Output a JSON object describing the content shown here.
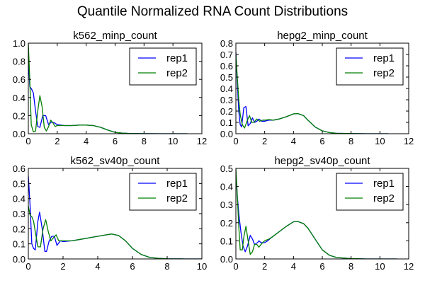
{
  "chart_data": {
    "title": "Quantile Normalized RNA Count Distributions",
    "type": "line",
    "colors": {
      "rep1": "#0000ff",
      "rep2": "#008000"
    },
    "subplots": [
      {
        "title": "k562_minp_count",
        "type": "line",
        "xlim": [
          0,
          12
        ],
        "ylim": [
          0,
          1.0
        ],
        "xticks": [
          0,
          2,
          4,
          6,
          8,
          10,
          12
        ],
        "yticks": [
          0.0,
          0.2,
          0.4,
          0.6,
          0.8,
          1.0
        ],
        "xtick_labels": [
          "0",
          "2",
          "4",
          "6",
          "8",
          "10",
          "12"
        ],
        "ytick_labels": [
          "0.0",
          "0.2",
          "0.4",
          "0.6",
          "0.8",
          "1.0"
        ],
        "legend": "top-right",
        "series": [
          {
            "name": "rep1",
            "x": [
              0,
              0.1,
              0.2,
              0.35,
              0.5,
              0.65,
              0.8,
              1.0,
              1.2,
              1.4,
              1.6,
              1.8,
              2.0,
              2.5,
              3,
              3.5,
              4,
              4.5,
              5,
              5.5,
              6,
              6.5,
              7,
              8,
              9,
              10,
              11
            ],
            "y": [
              0.85,
              0.52,
              0.5,
              0.45,
              0.25,
              0.08,
              0.07,
              0.2,
              0.2,
              0.1,
              0.13,
              0.12,
              0.1,
              0.09,
              0.09,
              0.095,
              0.095,
              0.09,
              0.07,
              0.04,
              0.015,
              0.006,
              0.003,
              0.001,
              0.0,
              0.0,
              0.0
            ]
          },
          {
            "name": "rep2",
            "x": [
              0,
              0.1,
              0.2,
              0.35,
              0.5,
              0.65,
              0.8,
              0.95,
              1.1,
              1.25,
              1.4,
              1.55,
              1.7,
              1.85,
              2.0,
              2.5,
              3,
              3.5,
              4,
              4.5,
              5,
              5.5,
              6,
              6.5,
              7,
              8,
              9,
              10,
              11
            ],
            "y": [
              1.0,
              0.6,
              0.1,
              0.02,
              0.03,
              0.25,
              0.42,
              0.3,
              0.07,
              0.03,
              0.08,
              0.15,
              0.12,
              0.08,
              0.09,
              0.09,
              0.09,
              0.095,
              0.095,
              0.09,
              0.07,
              0.04,
              0.015,
              0.006,
              0.003,
              0.001,
              0.0,
              0.0,
              0.0
            ]
          }
        ]
      },
      {
        "title": "hepg2_minp_count",
        "type": "line",
        "xlim": [
          0,
          12
        ],
        "ylim": [
          0,
          0.8
        ],
        "xticks": [
          0,
          2,
          4,
          6,
          8,
          10,
          12
        ],
        "yticks": [
          0.0,
          0.1,
          0.2,
          0.3,
          0.4,
          0.5,
          0.6,
          0.7,
          0.8
        ],
        "xtick_labels": [
          "0",
          "2",
          "4",
          "6",
          "8",
          "10",
          "12"
        ],
        "ytick_labels": [
          "0.0",
          "0.1",
          "0.2",
          "0.3",
          "0.4",
          "0.5",
          "0.6",
          "0.7",
          "0.8"
        ],
        "legend": "top-right",
        "series": [
          {
            "name": "rep1",
            "x": [
              0,
              0.1,
              0.2,
              0.3,
              0.4,
              0.55,
              0.7,
              0.85,
              1.0,
              1.15,
              1.3,
              1.45,
              1.6,
              1.8,
              2.0,
              2.3,
              2.6,
              3,
              3.5,
              4,
              4.3,
              4.7,
              5,
              5.5,
              6,
              6.5,
              7,
              8,
              9,
              10,
              10.6
            ],
            "y": [
              0.72,
              0.45,
              0.2,
              0.08,
              0.06,
              0.23,
              0.24,
              0.07,
              0.09,
              0.14,
              0.1,
              0.11,
              0.13,
              0.11,
              0.11,
              0.12,
              0.12,
              0.13,
              0.15,
              0.175,
              0.178,
              0.16,
              0.12,
              0.06,
              0.025,
              0.01,
              0.004,
              0.001,
              0.0,
              0.0,
              0.0
            ]
          },
          {
            "name": "rep2",
            "x": [
              0,
              0.1,
              0.2,
              0.3,
              0.45,
              0.6,
              0.8,
              0.95,
              1.1,
              1.25,
              1.45,
              1.65,
              1.85,
              2.0,
              2.3,
              2.6,
              3,
              3.5,
              4,
              4.3,
              4.7,
              5,
              5.5,
              6,
              6.5,
              7,
              8,
              9,
              10,
              10.6
            ],
            "y": [
              0.7,
              0.5,
              0.3,
              0.17,
              0.08,
              0.05,
              0.12,
              0.16,
              0.1,
              0.1,
              0.13,
              0.11,
              0.12,
              0.12,
              0.125,
              0.12,
              0.13,
              0.15,
              0.175,
              0.178,
              0.16,
              0.12,
              0.06,
              0.025,
              0.01,
              0.004,
              0.001,
              0.0,
              0.0,
              0.0
            ]
          }
        ]
      },
      {
        "title": "k562_sv40p_count",
        "type": "line",
        "xlim": [
          0,
          10
        ],
        "ylim": [
          0,
          0.6
        ],
        "xticks": [
          0,
          2,
          4,
          6,
          8,
          10
        ],
        "yticks": [
          0.0,
          0.1,
          0.2,
          0.3,
          0.4,
          0.5,
          0.6
        ],
        "xtick_labels": [
          "0",
          "2",
          "4",
          "6",
          "8",
          "10"
        ],
        "ytick_labels": [
          "0.0",
          "0.1",
          "0.2",
          "0.3",
          "0.4",
          "0.5",
          "0.6"
        ],
        "legend": "top-right",
        "series": [
          {
            "name": "rep1",
            "x": [
              0,
              0.1,
              0.2,
              0.3,
              0.4,
              0.55,
              0.65,
              0.8,
              0.95,
              1.05,
              1.2,
              1.35,
              1.5,
              1.65,
              1.85,
              2.0,
              2.5,
              3,
              3.5,
              4,
              4.5,
              4.8,
              5.2,
              5.6,
              6,
              6.5,
              7,
              7.5,
              8,
              9,
              10
            ],
            "y": [
              0.55,
              0.35,
              0.1,
              0.07,
              0.06,
              0.25,
              0.31,
              0.2,
              0.05,
              0.05,
              0.12,
              0.15,
              0.15,
              0.09,
              0.12,
              0.115,
              0.12,
              0.13,
              0.14,
              0.15,
              0.16,
              0.165,
              0.155,
              0.12,
              0.07,
              0.03,
              0.01,
              0.004,
              0.001,
              0.0,
              0.0
            ]
          },
          {
            "name": "rep2",
            "x": [
              0,
              0.1,
              0.2,
              0.3,
              0.4,
              0.55,
              0.7,
              0.85,
              1.0,
              1.15,
              1.3,
              1.45,
              1.6,
              1.75,
              1.9,
              2.0,
              2.5,
              3,
              3.5,
              4,
              4.5,
              4.8,
              5.2,
              5.6,
              6,
              6.5,
              7,
              7.5,
              8,
              9,
              10
            ],
            "y": [
              0.35,
              0.29,
              0.28,
              0.25,
              0.18,
              0.08,
              0.08,
              0.2,
              0.26,
              0.18,
              0.12,
              0.14,
              0.16,
              0.12,
              0.12,
              0.12,
              0.12,
              0.13,
              0.14,
              0.15,
              0.16,
              0.165,
              0.155,
              0.12,
              0.07,
              0.03,
              0.01,
              0.004,
              0.001,
              0.0,
              0.0
            ]
          }
        ]
      },
      {
        "title": "hepg2_sv40p_count",
        "type": "line",
        "xlim": [
          0,
          12
        ],
        "ylim": [
          0,
          0.5
        ],
        "xticks": [
          0,
          2,
          4,
          6,
          8,
          10,
          12
        ],
        "yticks": [
          0.0,
          0.1,
          0.2,
          0.3,
          0.4,
          0.5
        ],
        "xtick_labels": [
          "0",
          "2",
          "4",
          "6",
          "8",
          "10",
          "12"
        ],
        "ytick_labels": [
          "0.0",
          "0.1",
          "0.2",
          "0.3",
          "0.4",
          "0.5"
        ],
        "legend": "top-right",
        "series": [
          {
            "name": "rep1",
            "x": [
              0,
              0.1,
              0.2,
              0.35,
              0.5,
              0.65,
              0.8,
              1.0,
              1.15,
              1.3,
              1.5,
              1.6,
              1.75,
              2.0,
              2.2,
              2.5,
              3,
              3.5,
              4,
              4.3,
              4.7,
              5,
              5.5,
              6,
              6.5,
              7,
              8,
              9,
              10,
              11.2
            ],
            "y": [
              0.48,
              0.35,
              0.25,
              0.15,
              0.07,
              0.04,
              0.07,
              0.13,
              0.11,
              0.08,
              0.09,
              0.1,
              0.09,
              0.09,
              0.1,
              0.12,
              0.15,
              0.18,
              0.205,
              0.207,
              0.195,
              0.17,
              0.11,
              0.05,
              0.02,
              0.008,
              0.002,
              0.0,
              0.0,
              0.0
            ]
          },
          {
            "name": "rep2",
            "x": [
              0,
              0.1,
              0.2,
              0.3,
              0.45,
              0.55,
              0.7,
              0.85,
              1.0,
              1.15,
              1.3,
              1.45,
              1.6,
              1.8,
              2.0,
              2.3,
              2.5,
              3,
              3.5,
              4,
              4.3,
              4.7,
              5,
              5.5,
              6,
              6.5,
              7,
              8,
              9,
              10,
              11.2
            ],
            "y": [
              0.5,
              0.35,
              0.18,
              0.05,
              0.05,
              0.12,
              0.18,
              0.1,
              0.025,
              0.04,
              0.08,
              0.08,
              0.065,
              0.085,
              0.1,
              0.11,
              0.12,
              0.15,
              0.18,
              0.205,
              0.207,
              0.195,
              0.17,
              0.11,
              0.05,
              0.02,
              0.008,
              0.002,
              0.0,
              0.0,
              0.0
            ]
          }
        ]
      }
    ]
  }
}
